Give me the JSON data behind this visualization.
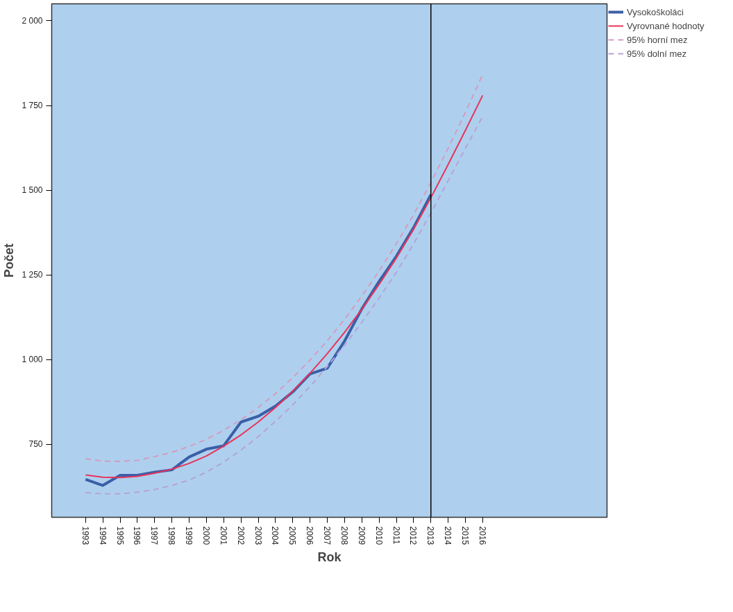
{
  "chart_data": {
    "type": "line",
    "xlabel": "Rok",
    "ylabel": "Počet",
    "categories": [
      "1993",
      "1994",
      "1995",
      "1996",
      "1997",
      "1998",
      "1999",
      "2000",
      "2001",
      "2002",
      "2003",
      "2004",
      "2005",
      "2006",
      "2007",
      "2008",
      "2009",
      "2010",
      "2011",
      "2012",
      "2013",
      "2014",
      "2015",
      "2016"
    ],
    "ylim": [
      535,
      2050
    ],
    "yticks": [
      {
        "value": 750,
        "label": "750"
      },
      {
        "value": 1000,
        "label": "1 000"
      },
      {
        "value": 1250,
        "label": "1 250"
      },
      {
        "value": 1500,
        "label": "1 500"
      },
      {
        "value": 1750,
        "label": "1 750"
      },
      {
        "value": 2000,
        "label": "2 000"
      }
    ],
    "grid": false,
    "legend": "top right",
    "line_style": "solid",
    "marker": "none",
    "ref_lines": [
      {
        "axis": "x",
        "value": "2013",
        "color": "#000000"
      }
    ],
    "series": [
      {
        "name": "Vysokoškoláci",
        "color": "#3a5fa8",
        "values": [
          647,
          629,
          659,
          659,
          668,
          675,
          713,
          736,
          746,
          816,
          833,
          863,
          905,
          958,
          975,
          1055,
          1150,
          1231,
          1305,
          1390,
          1487,
          null,
          null,
          null
        ]
      },
      {
        "name": "Vyrovnané hodnoty",
        "color": "#e8335a",
        "values": [
          660,
          653,
          652,
          656,
          665,
          677,
          694,
          716,
          745,
          778,
          816,
          859,
          907,
          960,
          1018,
          1081,
          1149,
          1222,
          1300,
          1385,
          1478,
          1576,
          1677,
          1780
        ]
      },
      {
        "name": "95% horní mez",
        "color": "#d39cc0",
        "line_style": "dashed",
        "values": [
          708,
          701,
          700,
          703,
          714,
          727,
          744,
          765,
          792,
          823,
          859,
          900,
          947,
          999,
          1056,
          1119,
          1188,
          1262,
          1342,
          1428,
          1523,
          1624,
          1730,
          1842
        ]
      },
      {
        "name": "95% dolní mez",
        "color": "#b6a3d6",
        "line_style": "dashed",
        "values": [
          608,
          604,
          604,
          609,
          617,
          629,
          645,
          668,
          698,
          733,
          773,
          818,
          867,
          921,
          980,
          1043,
          1110,
          1182,
          1258,
          1342,
          1433,
          1528,
          1624,
          1718
        ]
      }
    ]
  }
}
